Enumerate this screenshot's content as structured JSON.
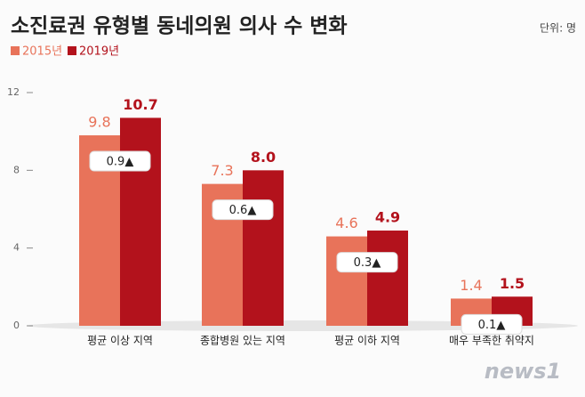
{
  "chart_data": {
    "type": "bar",
    "title": "소진료권 유형별 동네의원 의사 수 변화",
    "unit": "단위: 명",
    "categories": [
      "평균 이상 지역",
      "종합병원 있는 지역",
      "평균 이하 지역",
      "매우 부족한 취약지"
    ],
    "series": [
      {
        "name": "2015년",
        "color": "#e8735a",
        "values": [
          9.8,
          7.3,
          4.6,
          1.4
        ]
      },
      {
        "name": "2019년",
        "color": "#b3121c",
        "values": [
          10.7,
          8.0,
          4.9,
          1.5
        ],
        "value_labels": [
          "10.7",
          "8.0",
          "4.9",
          "1.5"
        ]
      }
    ],
    "annotations": [
      "0.9▲",
      "0.6▲",
      "0.3▲",
      "0.1▲"
    ],
    "ylim": [
      0,
      12
    ],
    "yticks": [
      0,
      4,
      8,
      12
    ],
    "source": "news1"
  }
}
